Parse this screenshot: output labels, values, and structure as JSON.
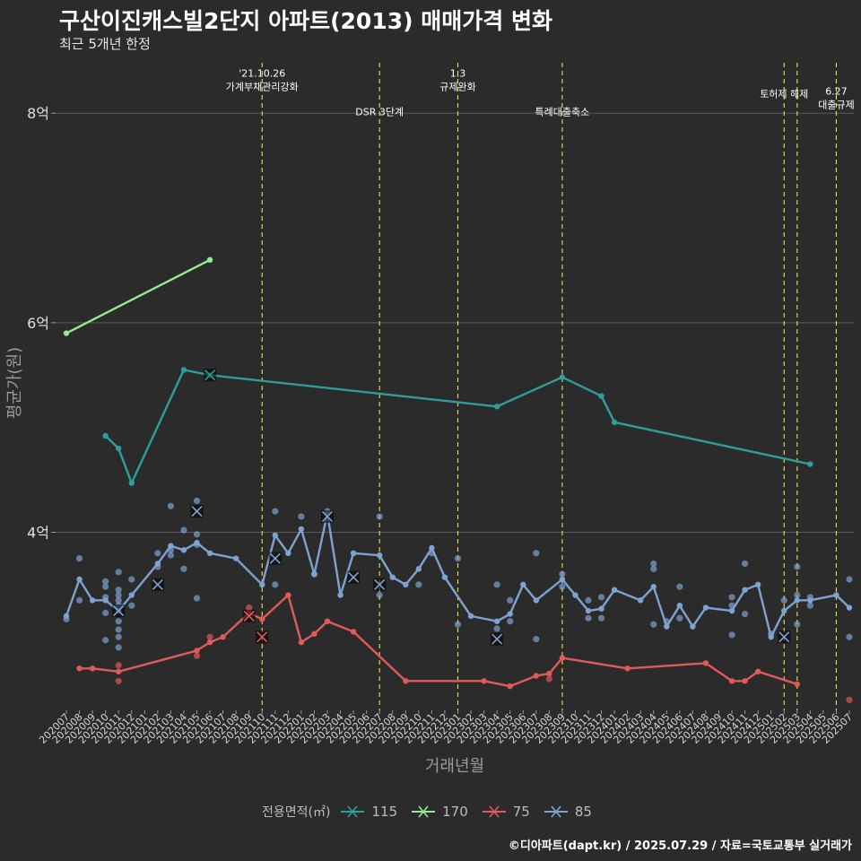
{
  "title": "구산이진캐스빌2단지 아파트(2013) 매매가격 변화",
  "subtitle": "최근 5개년 한정",
  "caption": "©디아파트(dapt.kr) / 2025.07.29 / 자료=국토교통부 실거래가",
  "legend": {
    "title": "전용면적(㎡)",
    "items": [
      {
        "label": "115",
        "color": "#2f9e9a"
      },
      {
        "label": "170",
        "color": "#90ee90"
      },
      {
        "label": "75",
        "color": "#e05a5a"
      },
      {
        "label": "85",
        "color": "#7fa3d0"
      }
    ]
  },
  "chart_data": {
    "type": "line",
    "xlabel": "거래년월",
    "ylabel": "평균가(원)",
    "y_ticks": [
      {
        "value": 4,
        "label": "4억"
      },
      {
        "value": 6,
        "label": "6억"
      },
      {
        "value": 8,
        "label": "8억"
      }
    ],
    "ylim": [
      2.3,
      8.55
    ],
    "categories": [
      "202007",
      "202008",
      "202009",
      "202010",
      "202011",
      "202012",
      "202101",
      "202102",
      "202103",
      "202104",
      "202105",
      "202106",
      "202107",
      "202108",
      "202109",
      "202110",
      "202111",
      "202112",
      "202201",
      "202202",
      "202203",
      "202204",
      "202205",
      "202206",
      "202207",
      "202208",
      "202209",
      "202210",
      "202211",
      "202212",
      "202301",
      "202302",
      "202303",
      "202304",
      "202305",
      "202306",
      "202307",
      "202308",
      "202309",
      "202310",
      "202311",
      "202312",
      "202401",
      "202402",
      "202403",
      "202404",
      "202405",
      "202406",
      "202407",
      "202408",
      "202409",
      "202410",
      "202411",
      "202412",
      "202501",
      "202502",
      "202503",
      "202504",
      "202505",
      "202506",
      "202507"
    ],
    "events": [
      {
        "label": "'21.10.26\n가계부채관리강화",
        "x": "202110",
        "y": 8.22
      },
      {
        "label": "DSR 3단계",
        "x": "202207",
        "y": 7.98
      },
      {
        "label": "1.3\n규제완화",
        "x": "202301",
        "y": 8.22
      },
      {
        "label": "특례대출축소",
        "x": "202309",
        "y": 7.98
      },
      {
        "label": "토허제 해제",
        "x": "202502",
        "y": 8.15
      },
      {
        "label": "",
        "x": "202503",
        "y": null
      },
      {
        "label": "6.27\n대출규제",
        "x": "202506",
        "y": 8.05
      }
    ],
    "series": [
      {
        "name": "115",
        "color": "#2f9e9a",
        "x": [
          "202010",
          "202011",
          "202012",
          "202104",
          "202106",
          "202304",
          "202309",
          "202312",
          "202401",
          "202504"
        ],
        "values": [
          4.92,
          4.8,
          4.47,
          5.55,
          5.5,
          5.2,
          5.48,
          5.3,
          5.05,
          4.65
        ]
      },
      {
        "name": "170",
        "color": "#90ee90",
        "x": [
          "202007",
          "202106"
        ],
        "values": [
          5.9,
          6.6
        ]
      },
      {
        "name": "75",
        "color": "#e05a5a",
        "x": [
          "202008",
          "202009",
          "202011",
          "202105",
          "202106",
          "202107",
          "202109",
          "202110",
          "202112",
          "202201",
          "202202",
          "202203",
          "202205",
          "202209",
          "202303",
          "202305",
          "202307",
          "202308",
          "202309",
          "202402",
          "202408",
          "202410",
          "202411",
          "202412",
          "202503"
        ],
        "values": [
          2.7,
          2.7,
          2.67,
          2.87,
          2.95,
          3.0,
          3.23,
          3.17,
          3.4,
          2.95,
          3.03,
          3.15,
          3.05,
          2.58,
          2.58,
          2.53,
          2.63,
          2.65,
          2.8,
          2.7,
          2.75,
          2.58,
          2.58,
          2.67,
          2.55
        ]
      },
      {
        "name": "85",
        "color": "#7fa3d0",
        "x": [
          "202007",
          "202008",
          "202009",
          "202010",
          "202011",
          "202012",
          "202102",
          "202103",
          "202104",
          "202105",
          "202106",
          "202108",
          "202110",
          "202111",
          "202112",
          "202201",
          "202202",
          "202203",
          "202204",
          "202205",
          "202207",
          "202208",
          "202209",
          "202210",
          "202211",
          "202212",
          "202302",
          "202304",
          "202305",
          "202306",
          "202307",
          "202309",
          "202310",
          "202311",
          "202312",
          "202401",
          "202403",
          "202404",
          "202405",
          "202406",
          "202407",
          "202408",
          "202410",
          "202411",
          "202412",
          "202501",
          "202502",
          "202503",
          "202504",
          "202506",
          "202507"
        ],
        "values": [
          3.2,
          3.55,
          3.35,
          3.35,
          3.25,
          3.4,
          3.7,
          3.87,
          3.83,
          3.9,
          3.8,
          3.75,
          3.5,
          3.97,
          3.8,
          4.03,
          3.6,
          4.18,
          3.4,
          3.8,
          3.78,
          3.57,
          3.5,
          3.65,
          3.85,
          3.57,
          3.2,
          3.15,
          3.22,
          3.5,
          3.35,
          3.55,
          3.4,
          3.25,
          3.27,
          3.45,
          3.35,
          3.48,
          3.1,
          3.3,
          3.1,
          3.28,
          3.25,
          3.45,
          3.5,
          3.0,
          3.25,
          3.35,
          3.35,
          3.4,
          3.28
        ]
      }
    ],
    "scatter": [
      {
        "series": "85",
        "x": "202007",
        "y": 3.17
      },
      {
        "series": "85",
        "x": "202008",
        "y": 3.75
      },
      {
        "series": "85",
        "x": "202008",
        "y": 3.35
      },
      {
        "series": "85",
        "x": "202010",
        "y": 3.53
      },
      {
        "series": "85",
        "x": "202010",
        "y": 3.48
      },
      {
        "series": "85",
        "x": "202010",
        "y": 3.38
      },
      {
        "series": "85",
        "x": "202010",
        "y": 3.23
      },
      {
        "series": "85",
        "x": "202010",
        "y": 2.97
      },
      {
        "series": "85",
        "x": "202011",
        "y": 3.62
      },
      {
        "series": "85",
        "x": "202011",
        "y": 3.45
      },
      {
        "series": "85",
        "x": "202011",
        "y": 3.4
      },
      {
        "series": "85",
        "x": "202011",
        "y": 3.35
      },
      {
        "series": "85",
        "x": "202011",
        "y": 3.3
      },
      {
        "series": "85",
        "x": "202011",
        "y": 3.15
      },
      {
        "series": "85",
        "x": "202011",
        "y": 3.07
      },
      {
        "series": "85",
        "x": "202011",
        "y": 3.0
      },
      {
        "series": "85",
        "x": "202011",
        "y": 2.9
      },
      {
        "series": "85",
        "x": "202012",
        "y": 3.55
      },
      {
        "series": "85",
        "x": "202012",
        "y": 3.3
      },
      {
        "series": "85",
        "x": "202102",
        "y": 3.8
      },
      {
        "series": "85",
        "x": "202102",
        "y": 3.67
      },
      {
        "series": "85",
        "x": "202103",
        "y": 4.25
      },
      {
        "series": "85",
        "x": "202103",
        "y": 3.83
      },
      {
        "series": "85",
        "x": "202103",
        "y": 3.78
      },
      {
        "series": "85",
        "x": "202104",
        "y": 4.02
      },
      {
        "series": "85",
        "x": "202104",
        "y": 3.65
      },
      {
        "series": "85",
        "x": "202105",
        "y": 4.3
      },
      {
        "series": "85",
        "x": "202105",
        "y": 3.98
      },
      {
        "series": "85",
        "x": "202105",
        "y": 3.88
      },
      {
        "series": "85",
        "x": "202105",
        "y": 3.37
      },
      {
        "series": "85",
        "x": "202111",
        "y": 4.2
      },
      {
        "series": "85",
        "x": "202111",
        "y": 3.5
      },
      {
        "series": "85",
        "x": "202201",
        "y": 4.15
      },
      {
        "series": "85",
        "x": "202202",
        "y": 3.6
      },
      {
        "series": "85",
        "x": "202203",
        "y": 4.2
      },
      {
        "series": "85",
        "x": "202207",
        "y": 4.15
      },
      {
        "series": "85",
        "x": "202207",
        "y": 3.4
      },
      {
        "series": "85",
        "x": "202210",
        "y": 3.5
      },
      {
        "series": "85",
        "x": "202211",
        "y": 3.8
      },
      {
        "series": "85",
        "x": "202301",
        "y": 3.75
      },
      {
        "series": "85",
        "x": "202301",
        "y": 3.12
      },
      {
        "series": "85",
        "x": "202304",
        "y": 3.5
      },
      {
        "series": "85",
        "x": "202304",
        "y": 3.08
      },
      {
        "series": "85",
        "x": "202305",
        "y": 3.35
      },
      {
        "series": "85",
        "x": "202305",
        "y": 3.15
      },
      {
        "series": "85",
        "x": "202307",
        "y": 3.8
      },
      {
        "series": "85",
        "x": "202307",
        "y": 2.98
      },
      {
        "series": "85",
        "x": "202309",
        "y": 3.6
      },
      {
        "series": "85",
        "x": "202309",
        "y": 3.48
      },
      {
        "series": "85",
        "x": "202311",
        "y": 3.35
      },
      {
        "series": "85",
        "x": "202311",
        "y": 3.18
      },
      {
        "series": "85",
        "x": "202312",
        "y": 3.38
      },
      {
        "series": "85",
        "x": "202312",
        "y": 3.18
      },
      {
        "series": "85",
        "x": "202404",
        "y": 3.7
      },
      {
        "series": "85",
        "x": "202404",
        "y": 3.65
      },
      {
        "series": "85",
        "x": "202404",
        "y": 3.12
      },
      {
        "series": "85",
        "x": "202405",
        "y": 3.15
      },
      {
        "series": "85",
        "x": "202406",
        "y": 3.48
      },
      {
        "series": "85",
        "x": "202406",
        "y": 3.18
      },
      {
        "series": "85",
        "x": "202410",
        "y": 3.38
      },
      {
        "series": "85",
        "x": "202410",
        "y": 3.3
      },
      {
        "series": "85",
        "x": "202410",
        "y": 3.02
      },
      {
        "series": "85",
        "x": "202411",
        "y": 3.7
      },
      {
        "series": "85",
        "x": "202411",
        "y": 3.22
      },
      {
        "series": "85",
        "x": "202501",
        "y": 3.03
      },
      {
        "series": "85",
        "x": "202502",
        "y": 3.35
      },
      {
        "series": "85",
        "x": "202503",
        "y": 3.67
      },
      {
        "series": "85",
        "x": "202503",
        "y": 3.4
      },
      {
        "series": "85",
        "x": "202503",
        "y": 3.12
      },
      {
        "series": "85",
        "x": "202504",
        "y": 3.38
      },
      {
        "series": "85",
        "x": "202504",
        "y": 3.3
      },
      {
        "series": "85",
        "x": "202507",
        "y": 3.55
      },
      {
        "series": "85",
        "x": "202507",
        "y": 3.0
      },
      {
        "series": "75",
        "x": "202011",
        "y": 2.73
      },
      {
        "series": "75",
        "x": "202011",
        "y": 2.58
      },
      {
        "series": "75",
        "x": "202105",
        "y": 2.82
      },
      {
        "series": "75",
        "x": "202106",
        "y": 3.0
      },
      {
        "series": "75",
        "x": "202109",
        "y": 3.28
      },
      {
        "series": "75",
        "x": "202308",
        "y": 2.6
      },
      {
        "series": "75",
        "x": "202507",
        "y": 2.4
      }
    ],
    "x_markers": [
      {
        "series": "85",
        "x": "202011",
        "y": 3.25
      },
      {
        "series": "85",
        "x": "202102",
        "y": 3.5
      },
      {
        "series": "85",
        "x": "202105",
        "y": 4.2
      },
      {
        "series": "85",
        "x": "202111",
        "y": 3.75
      },
      {
        "series": "85",
        "x": "202203",
        "y": 4.15
      },
      {
        "series": "85",
        "x": "202205",
        "y": 3.57
      },
      {
        "series": "85",
        "x": "202207",
        "y": 3.5
      },
      {
        "series": "85",
        "x": "202304",
        "y": 2.98
      },
      {
        "series": "85",
        "x": "202502",
        "y": 3.0
      },
      {
        "series": "75",
        "x": "202109",
        "y": 3.2
      },
      {
        "series": "75",
        "x": "202110",
        "y": 3.0
      },
      {
        "series": "115",
        "x": "202106",
        "y": 5.5
      }
    ]
  }
}
